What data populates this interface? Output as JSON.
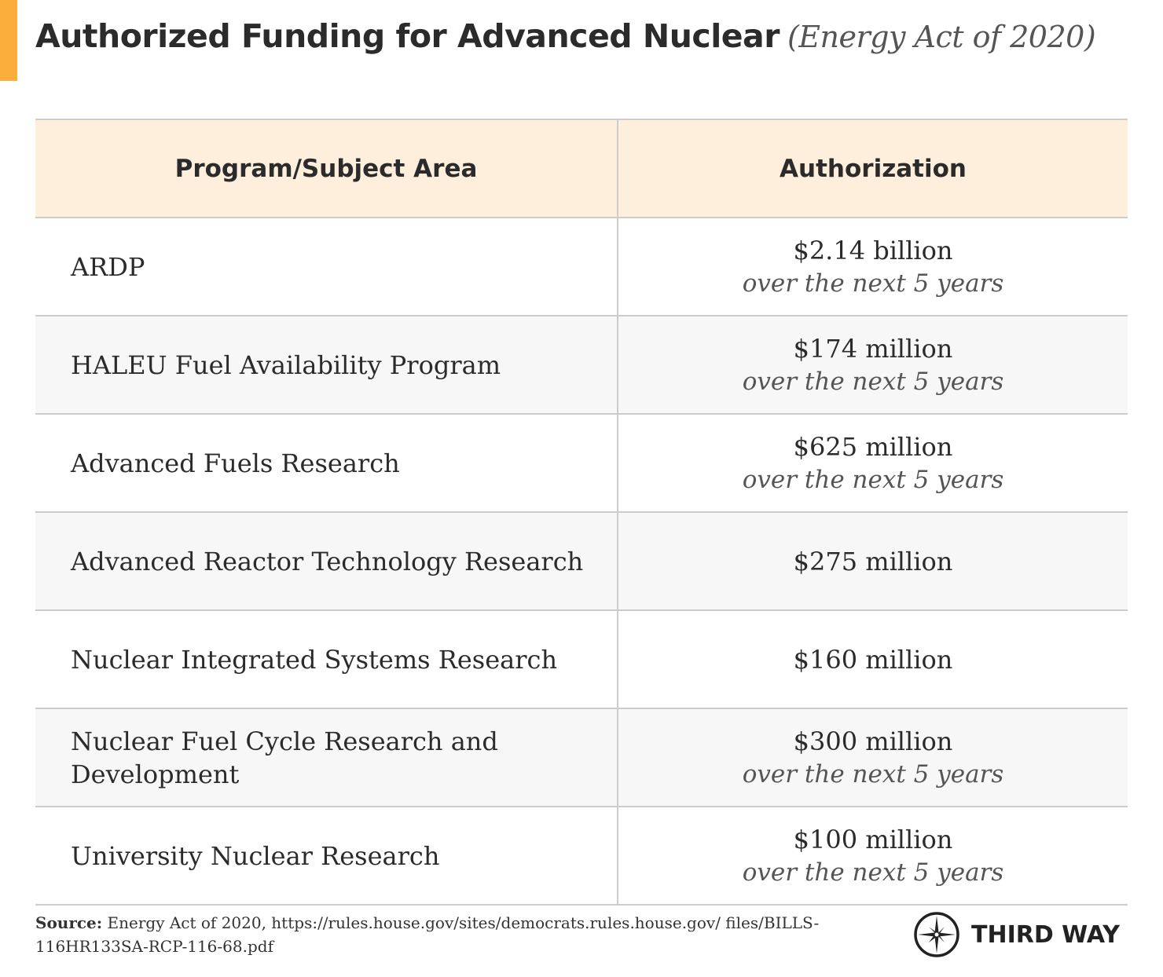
{
  "header": {
    "title": "Authorized Funding for Advanced Nuclear",
    "subtitle": "(Energy Act of 2020)",
    "accent_color": "#FBAE3C"
  },
  "table": {
    "columns": [
      "Program/Subject Area",
      "Authorization"
    ],
    "rows": [
      {
        "program": "ARDP",
        "amount": "$2.14 billion",
        "note": "over the next 5 years"
      },
      {
        "program": "HALEU Fuel Availability Program",
        "amount": "$174 million",
        "note": "over the next 5 years"
      },
      {
        "program": "Advanced Fuels Research",
        "amount": "$625 million",
        "note": "over the next 5 years"
      },
      {
        "program": "Advanced Reactor Technology Research",
        "amount": "$275 million",
        "note": ""
      },
      {
        "program": "Nuclear Integrated Systems Research",
        "amount": "$160 million",
        "note": ""
      },
      {
        "program": "Nuclear Fuel Cycle Research and Development",
        "amount": "$300 million",
        "note": "over the next 5 years"
      },
      {
        "program": "University Nuclear Research",
        "amount": "$100 million",
        "note": "over the next 5 years"
      }
    ]
  },
  "footer": {
    "source_label": "Source:",
    "source_text": "Energy Act of 2020, https://rules.house.gov/sites/democrats.rules.house.gov/ files/BILLS-116HR133SA-RCP-116-68.pdf",
    "logo_text": "THIRD WAY",
    "logo_icon": "compass-star-icon"
  }
}
